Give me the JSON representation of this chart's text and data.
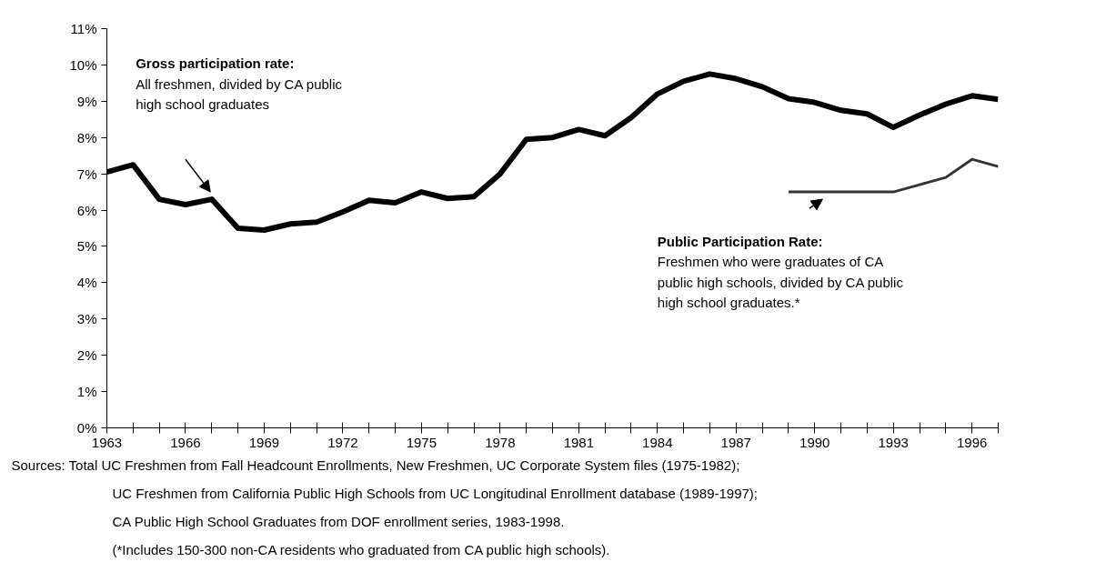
{
  "chart_data": {
    "type": "line",
    "x": [
      1963,
      1964,
      1965,
      1966,
      1967,
      1968,
      1969,
      1970,
      1971,
      1972,
      1973,
      1974,
      1975,
      1976,
      1977,
      1978,
      1979,
      1980,
      1981,
      1982,
      1983,
      1984,
      1985,
      1986,
      1987,
      1988,
      1989,
      1990,
      1991,
      1992,
      1993,
      1994,
      1995,
      1996,
      1997
    ],
    "series": [
      {
        "color": "#000000",
        "values": [
          7.05,
          7.25,
          6.3,
          6.15,
          6.3,
          5.5,
          5.45,
          5.62,
          5.67,
          5.95,
          6.27,
          6.2,
          6.5,
          6.32,
          6.37,
          7.0,
          7.95,
          8.0,
          8.22,
          8.05,
          8.55,
          9.2,
          9.55,
          9.75,
          9.62,
          9.4,
          9.07,
          8.97,
          8.75,
          8.65,
          8.28,
          8.62,
          8.92,
          9.15,
          9.05
        ]
      },
      {
        "color": "#333333",
        "values": [
          null,
          null,
          null,
          null,
          null,
          null,
          null,
          null,
          null,
          null,
          null,
          null,
          null,
          null,
          null,
          null,
          null,
          null,
          null,
          null,
          null,
          null,
          null,
          null,
          null,
          null,
          6.5,
          6.5,
          6.5,
          6.5,
          6.5,
          6.7,
          6.9,
          7.4,
          7.2
        ]
      }
    ],
    "xlim": [
      1963,
      1997
    ],
    "xticks": [
      1963,
      {
        "value": 1964,
        "label": null
      },
      {
        "value": 1965,
        "label": null
      },
      1966,
      {
        "value": 1967,
        "label": null
      },
      {
        "value": 1968,
        "label": null
      },
      1969,
      {
        "value": 1970,
        "label": null
      },
      {
        "value": 1971,
        "label": null
      },
      1972,
      {
        "value": 1973,
        "label": null
      },
      {
        "value": 1974,
        "label": null
      },
      1975,
      {
        "value": 1976,
        "label": null
      },
      {
        "value": 1977,
        "label": null
      },
      1978,
      {
        "value": 1979,
        "label": null
      },
      {
        "value": 1980,
        "label": null
      },
      1981,
      {
        "value": 1982,
        "label": null
      },
      {
        "value": 1983,
        "label": null
      },
      1984,
      {
        "value": 1985,
        "label": null
      },
      {
        "value": 1986,
        "label": null
      },
      1987,
      {
        "value": 1988,
        "label": null
      },
      {
        "value": 1989,
        "label": null
      },
      1990,
      {
        "value": 1991,
        "label": null
      },
      {
        "value": 1992,
        "label": null
      },
      1993,
      {
        "value": 1994,
        "label": null
      },
      {
        "value": 1995,
        "label": null
      },
      1996,
      {
        "value": 1997,
        "label": null
      }
    ],
    "ylim": [
      0,
      11
    ],
    "yticks": [
      {
        "value": 0,
        "label": "0%"
      },
      {
        "value": 1,
        "label": "1%"
      },
      {
        "value": 2,
        "label": "2%"
      },
      {
        "value": 3,
        "label": "3%"
      },
      {
        "value": 4,
        "label": "4%"
      },
      {
        "value": 5,
        "label": "5%"
      },
      {
        "value": 6,
        "label": "6%"
      },
      {
        "value": 7,
        "label": "7%"
      },
      {
        "value": 8,
        "label": "8%"
      },
      {
        "value": 9,
        "label": "9%"
      },
      {
        "value": 10,
        "label": "10%"
      },
      {
        "value": 11,
        "label": "11%"
      }
    ],
    "grid": false,
    "marker": "none",
    "line_style": "solid",
    "annotations": [
      "Gross participation rate:\nAll freshmen, divided by CA public\nhigh school graduates",
      "Public Participation Rate:\nFreshmen who were graduates of CA\npublic high schools,  divided by CA public\nhigh school graduates.*",
      "Sources:  Total UC Freshmen from Fall Headcount Enrollments, New Freshmen, UC Corporate System files (1975-1982);",
      "UC Freshmen from California Public High Schools from UC Longitudinal Enrollment database (1989-1997);",
      "CA Public High School Graduates from DOF enrollment series, 1983-1998.",
      "(*Includes 150-300 non-CA residents who graduated from CA public high schools)."
    ]
  }
}
